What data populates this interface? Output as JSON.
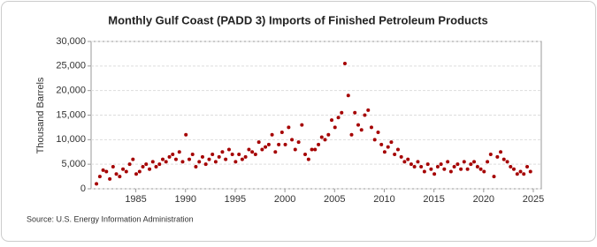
{
  "chart_data": {
    "type": "scatter",
    "title": "Monthly Gulf Coast (PADD 3) Imports of Finished Petroleum Products",
    "y_label": "Thousand Barrels",
    "source": "Source: U.S. Energy Information Administration",
    "color": "#a50000",
    "grid": true,
    "xlim": [
      1980.5,
      2025.8
    ],
    "xticks": [
      1985,
      1990,
      1995,
      2000,
      2005,
      2010,
      2015,
      2020,
      2025
    ],
    "ylim": [
      0,
      30000
    ],
    "yticks": [
      0,
      {
        "value": 5000,
        "label": "5,000"
      },
      {
        "value": 10000,
        "label": "10,000"
      },
      {
        "value": 15000,
        "label": "15,000"
      },
      {
        "value": 20000,
        "label": "20,000"
      },
      {
        "value": 25000,
        "label": "25,000"
      },
      {
        "value": 30000,
        "label": "30,000"
      }
    ],
    "x": [
      1981.04,
      1981.38,
      1981.71,
      1982.04,
      1982.38,
      1982.71,
      1983.04,
      1983.38,
      1983.71,
      1984.04,
      1984.38,
      1984.71,
      1985.04,
      1985.38,
      1985.71,
      1986.04,
      1986.38,
      1986.71,
      1987.04,
      1987.38,
      1987.71,
      1988.04,
      1988.38,
      1988.71,
      1989.04,
      1989.38,
      1989.71,
      1990.04,
      1990.38,
      1990.71,
      1991.04,
      1991.38,
      1991.71,
      1992.04,
      1992.38,
      1992.71,
      1993.04,
      1993.38,
      1993.71,
      1994.04,
      1994.38,
      1994.71,
      1995.04,
      1995.38,
      1995.71,
      1996.04,
      1996.38,
      1996.71,
      1997.04,
      1997.38,
      1997.71,
      1998.04,
      1998.38,
      1998.71,
      1999.04,
      1999.38,
      1999.71,
      2000.04,
      2000.38,
      2000.71,
      2001.04,
      2001.38,
      2001.71,
      2002.04,
      2002.38,
      2002.71,
      2003.04,
      2003.38,
      2003.71,
      2004.04,
      2004.38,
      2004.71,
      2005.04,
      2005.38,
      2005.71,
      2006.04,
      2006.38,
      2006.71,
      2007.04,
      2007.38,
      2007.71,
      2008.04,
      2008.38,
      2008.71,
      2009.04,
      2009.38,
      2009.71,
      2010.04,
      2010.38,
      2010.71,
      2011.04,
      2011.38,
      2011.71,
      2012.04,
      2012.38,
      2012.71,
      2013.04,
      2013.38,
      2013.71,
      2014.04,
      2014.38,
      2014.71,
      2015.04,
      2015.38,
      2015.71,
      2016.04,
      2016.38,
      2016.71,
      2017.04,
      2017.38,
      2017.71,
      2018.04,
      2018.38,
      2018.71,
      2019.04,
      2019.38,
      2019.71,
      2020.04,
      2020.38,
      2020.71,
      2021.04,
      2021.38,
      2021.71,
      2022.04,
      2022.38,
      2022.71,
      2023.04,
      2023.38,
      2023.71,
      2024.04,
      2024.38,
      2024.71
    ],
    "values": [
      1000,
      2500,
      3800,
      3500,
      2000,
      4500,
      3000,
      2500,
      4000,
      3500,
      5000,
      6000,
      3000,
      3500,
      4500,
      5000,
      4000,
      5500,
      4500,
      5000,
      6000,
      5500,
      6500,
      7000,
      6000,
      7500,
      5500,
      11000,
      6000,
      7000,
      4500,
      5500,
      6500,
      5000,
      6000,
      7000,
      5500,
      6500,
      7500,
      6000,
      8000,
      7000,
      5500,
      7000,
      6000,
      6500,
      8000,
      7500,
      7000,
      9500,
      8000,
      8500,
      9000,
      11000,
      7500,
      9000,
      11500,
      9000,
      12500,
      10000,
      8000,
      9500,
      13000,
      7000,
      6000,
      8000,
      8000,
      9000,
      10500,
      10000,
      11000,
      14000,
      12500,
      14500,
      15500,
      25500,
      19000,
      11000,
      15500,
      13000,
      12000,
      15000,
      16000,
      12500,
      10000,
      11500,
      9000,
      7500,
      8500,
      9500,
      7000,
      8000,
      6500,
      5500,
      6000,
      5000,
      4500,
      5500,
      4500,
      3500,
      5000,
      4000,
      3000,
      4500,
      5000,
      4000,
      5500,
      3500,
      4500,
      5000,
      4000,
      5500,
      4000,
      5000,
      5500,
      4500,
      4000,
      3500,
      5500,
      7000,
      2500,
      6500,
      7500,
      6000,
      5500,
      4500,
      4000,
      3000,
      3500,
      3000,
      4500,
      3500
    ]
  }
}
